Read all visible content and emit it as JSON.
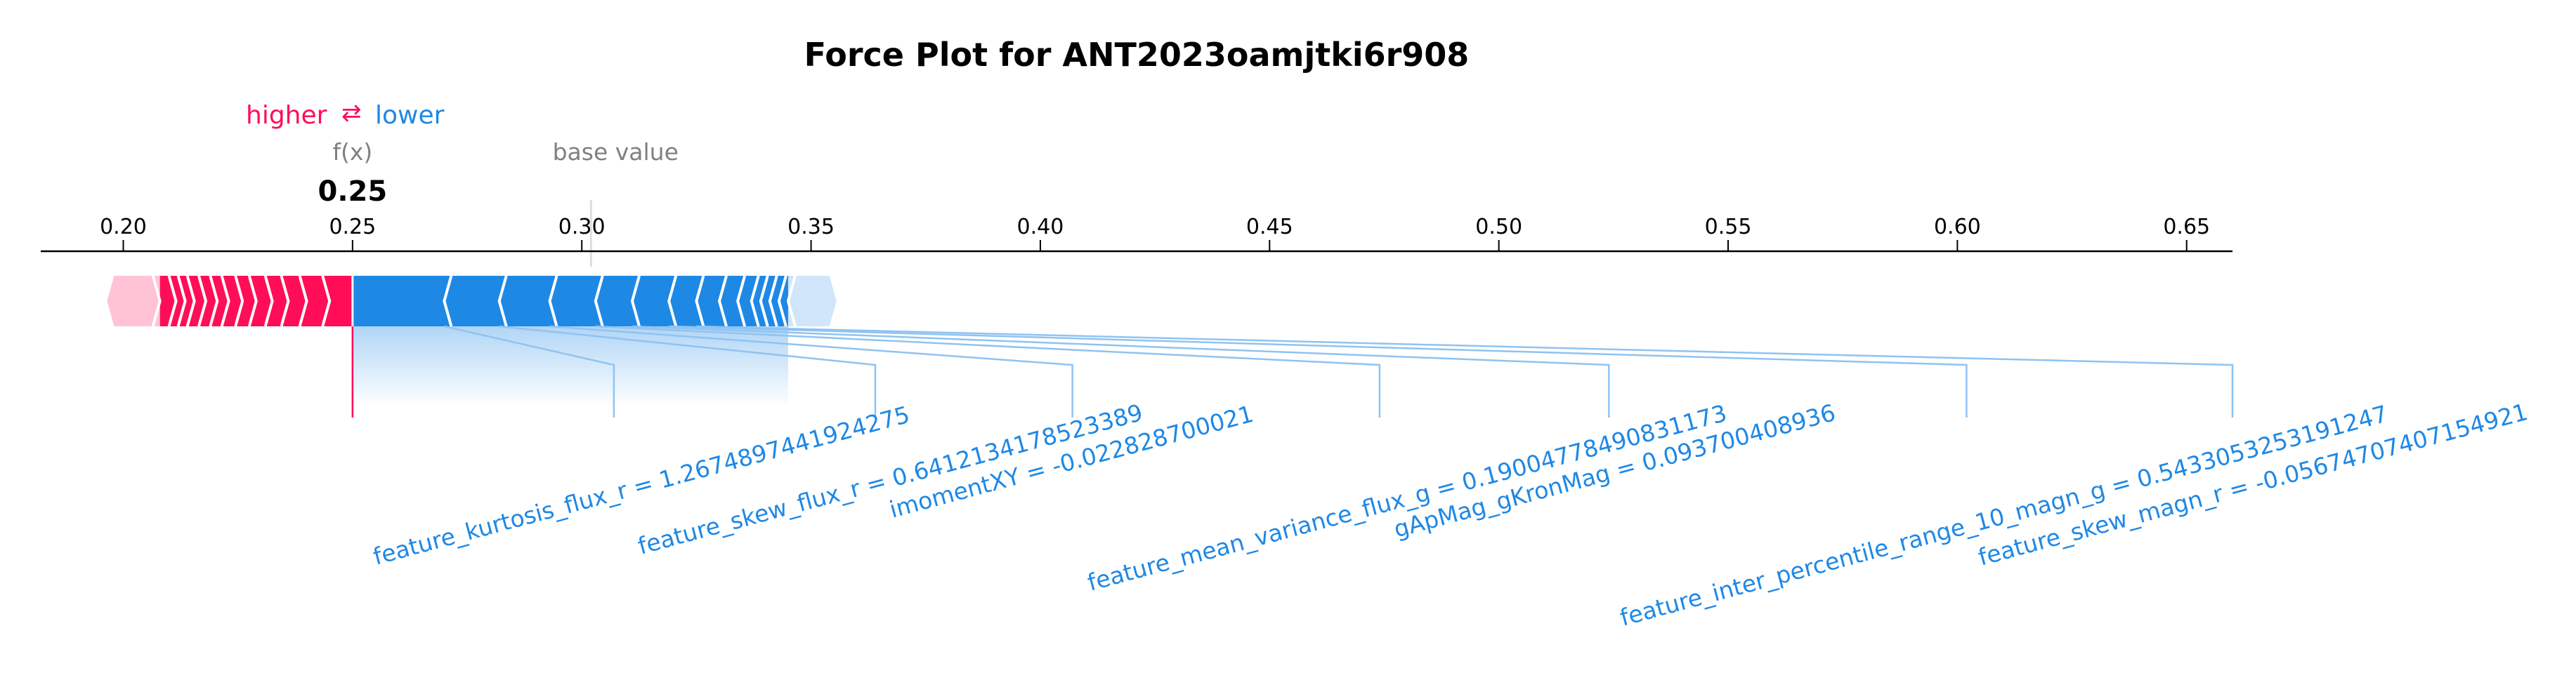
{
  "chart_data": {
    "type": "force",
    "title": "Force Plot for ANT2023oamjtki6r908",
    "legend": {
      "higher": "higher",
      "arrow": "⇄",
      "lower": "lower"
    },
    "fx_label": "f(x)",
    "fx_value_label": "0.25",
    "output_value": 0.25,
    "base_value_label": "base value",
    "base_value": 0.302,
    "xlim": [
      0.182,
      0.66
    ],
    "ticks": [
      {
        "value": 0.2,
        "label": "0.20"
      },
      {
        "value": 0.25,
        "label": "0.25"
      },
      {
        "value": 0.3,
        "label": "0.30"
      },
      {
        "value": 0.35,
        "label": "0.35"
      },
      {
        "value": 0.4,
        "label": "0.40"
      },
      {
        "value": 0.45,
        "label": "0.45"
      },
      {
        "value": 0.5,
        "label": "0.50"
      },
      {
        "value": 0.55,
        "label": "0.55"
      },
      {
        "value": 0.6,
        "label": "0.60"
      },
      {
        "value": 0.65,
        "label": "0.65"
      }
    ],
    "positive_range": [
      0.198,
      0.25
    ],
    "positive_faded_range": [
      0.198,
      0.208
    ],
    "positive_segments": [
      0.208,
      0.2115,
      0.2135,
      0.2155,
      0.218,
      0.2205,
      0.223,
      0.226,
      0.229,
      0.2325,
      0.236,
      0.24,
      0.245,
      0.25
    ],
    "negative_range": [
      0.25,
      0.354
    ],
    "negative_faded_range": [
      0.345,
      0.354
    ],
    "negative_segments": [
      0.25,
      0.27,
      0.282,
      0.293,
      0.303,
      0.311,
      0.319,
      0.325,
      0.33,
      0.334,
      0.337,
      0.339,
      0.341,
      0.343,
      0.345
    ],
    "features": [
      {
        "text": "feature_kurtosis_flux_r = 1.2674897441924275",
        "from": 0.27,
        "to": 0.307
      },
      {
        "text": "feature_skew_flux_r = 0.6412134178523389",
        "from": 0.282,
        "to": 0.364
      },
      {
        "text": "imomentXY = -0.022828700021",
        "from": 0.293,
        "to": 0.407
      },
      {
        "text": "feature_mean_variance_flux_g = 0.19004778490831173",
        "from": 0.303,
        "to": 0.474
      },
      {
        "text": "gApMag_gKronMag = 0.093700408936",
        "from": 0.311,
        "to": 0.524
      },
      {
        "text": "feature_inter_percentile_range_10_magn_g = 0.5433053253191247",
        "from": 0.319,
        "to": 0.602
      },
      {
        "text": "feature_skew_magn_r = -0.05674707407154921",
        "from": 0.325,
        "to": 0.66
      }
    ],
    "colors": {
      "positive": "#ff0d57",
      "positive_faded": "#ffc3d5",
      "negative": "#1e88e5",
      "negative_faded": "#d1e6fa",
      "connector": "#8fc3f2"
    }
  }
}
